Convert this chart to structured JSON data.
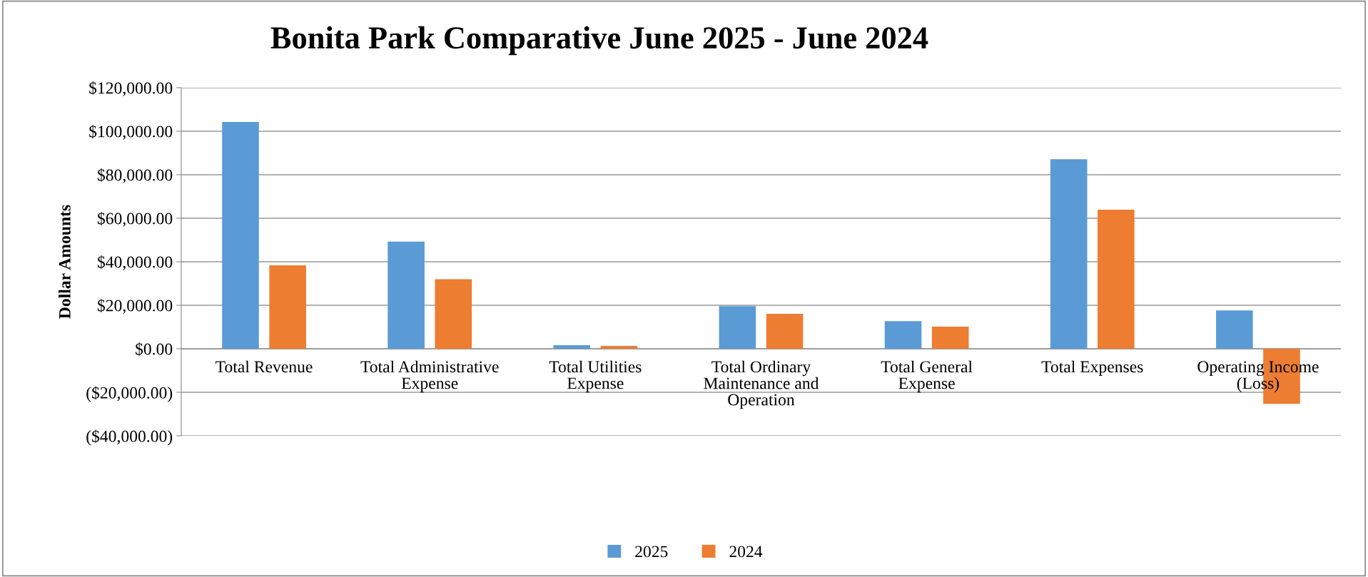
{
  "chart_data": {
    "type": "bar",
    "title": "Bonita Park Comparative June 2025 - June 2024",
    "ylabel": "Dollar Amounts",
    "categories": [
      "Total Revenue",
      "Total Administrative\nExpense",
      "Total Utilities\nExpense",
      "Total Ordinary\nMaintenance and\nOperation",
      "Total General\nExpense",
      "Total Expenses",
      "Operating Income\n(Loss)"
    ],
    "series": [
      {
        "name": "2025",
        "color": "#5b9bd5",
        "values": [
          104300,
          49300,
          1600,
          19600,
          12700,
          87100,
          17600
        ]
      },
      {
        "name": "2024",
        "color": "#ed7d31",
        "values": [
          38400,
          32000,
          1300,
          16100,
          10200,
          63900,
          -25300
        ]
      }
    ],
    "ylim": [
      -40000,
      120000
    ],
    "yticks": [
      {
        "value": -40000,
        "label": "($40,000.00)"
      },
      {
        "value": -20000,
        "label": "($20,000.00)"
      },
      {
        "value": 0,
        "label": "$0.00"
      },
      {
        "value": 20000,
        "label": "$20,000.00"
      },
      {
        "value": 40000,
        "label": "$40,000.00"
      },
      {
        "value": 60000,
        "label": "$60,000.00"
      },
      {
        "value": 80000,
        "label": "$80,000.00"
      },
      {
        "value": 100000,
        "label": "$100,000.00"
      },
      {
        "value": 120000,
        "label": "$120,000.00"
      }
    ],
    "grid": "y",
    "legend": "bottom"
  }
}
